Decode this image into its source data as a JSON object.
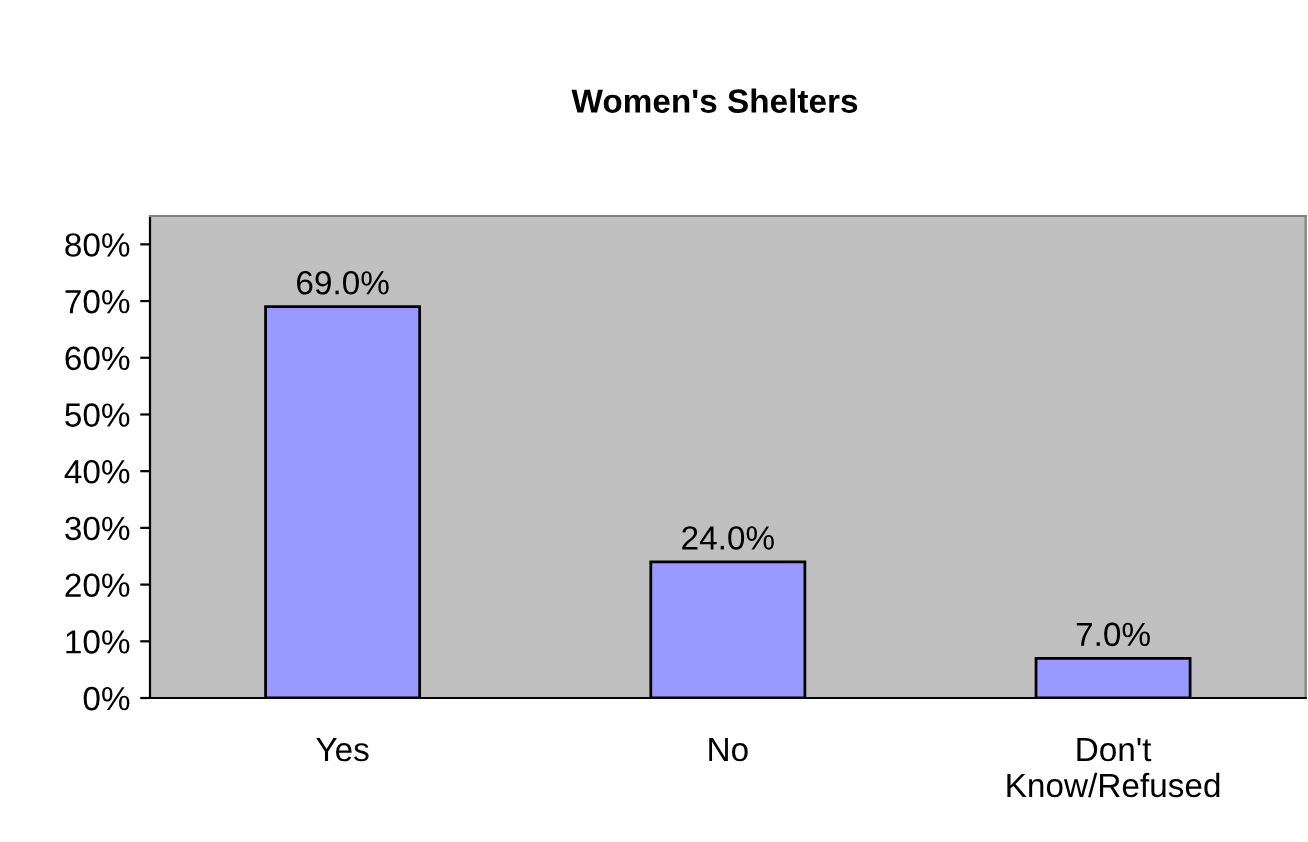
{
  "chart_data": {
    "type": "bar",
    "title": "Women's Shelters",
    "categories": [
      "Yes",
      "No",
      "Don't\nKnow/Refused"
    ],
    "values": [
      69.0,
      24.0,
      7.0
    ],
    "color": "#9999ff",
    "value_labels": [
      "69.0%",
      "24.0%",
      "7.0%"
    ],
    "ylim": [
      0,
      85
    ],
    "yticks": [
      {
        "value": 0,
        "label": "0%"
      },
      {
        "value": 10,
        "label": "10%"
      },
      {
        "value": 20,
        "label": "20%"
      },
      {
        "value": 30,
        "label": "30%"
      },
      {
        "value": 40,
        "label": "40%"
      },
      {
        "value": 50,
        "label": "50%"
      },
      {
        "value": 60,
        "label": "60%"
      },
      {
        "value": 70,
        "label": "70%"
      },
      {
        "value": 80,
        "label": "80%"
      }
    ],
    "grid": false,
    "legend": false
  }
}
